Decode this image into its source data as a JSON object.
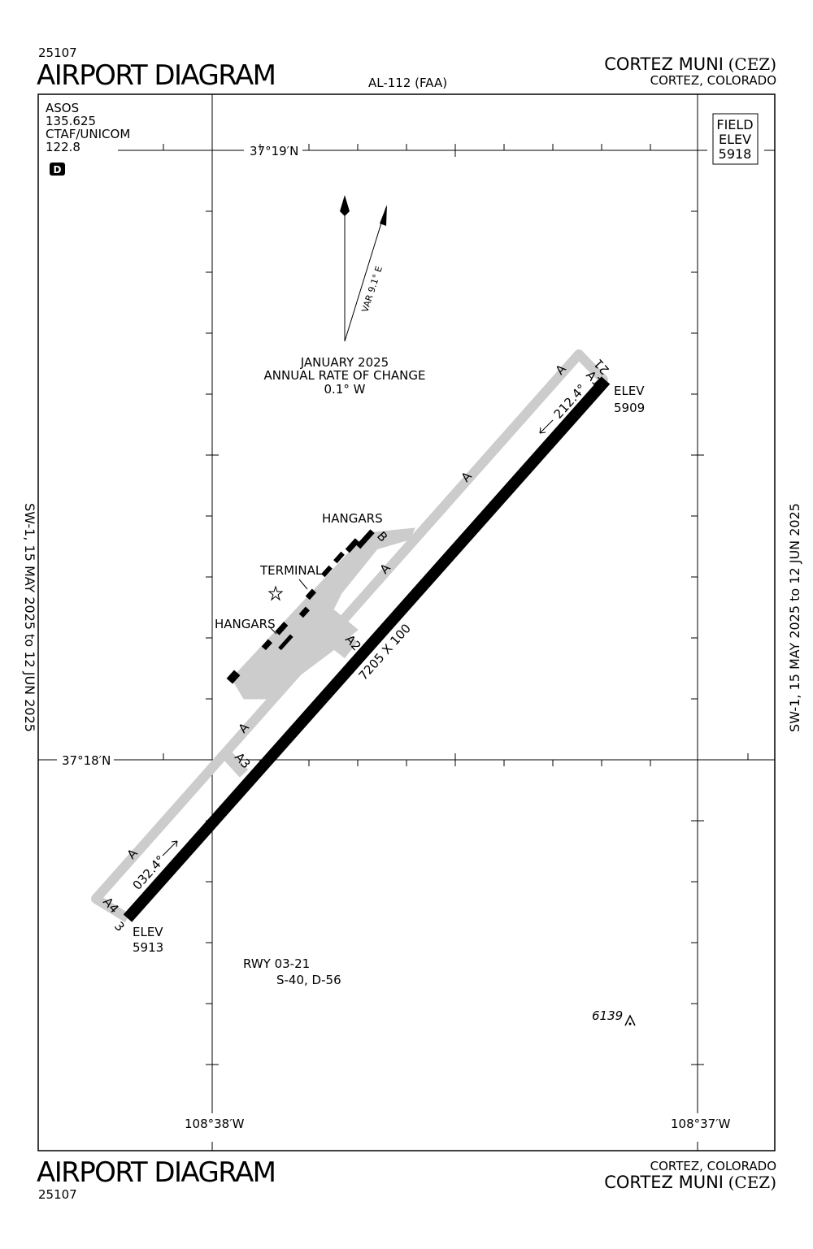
{
  "header": {
    "chart_number": "25107",
    "title": "AIRPORT DIAGRAM",
    "procedure_id": "AL-112 (FAA)",
    "airport_name": "CORTEZ MUNI",
    "airport_id": "(CEZ)",
    "location": "CORTEZ, COLORADO"
  },
  "footer": {
    "chart_number": "25107",
    "title": "AIRPORT DIAGRAM",
    "location": "CORTEZ, COLORADO",
    "airport_name": "CORTEZ MUNI",
    "airport_id": "(CEZ)"
  },
  "effective_dates": "SW-1,  15 MAY 2025  to  12 JUN 2025",
  "communications": [
    "ASOS",
    "135.625",
    "CTAF/UNICOM",
    "122.8"
  ],
  "atis_symbol": "D",
  "field_elevation": {
    "line_1": "FIELD",
    "line_2": "ELEV",
    "value": 5918
  },
  "coordinates": {
    "lat_north": "37°19′N",
    "lat_south": "37°18′N",
    "lon_west": "108°38′W",
    "lon_east": "108°37′W"
  },
  "magnetic": {
    "variation": "VAR 9.1° E",
    "date": "JANUARY 2025",
    "rate_title": "ANNUAL RATE OF CHANGE",
    "rate": "0.1° W"
  },
  "runway": {
    "dimensions": "7205 X 100",
    "end_3": {
      "number": "3",
      "heading": "032.4°",
      "elev_label": "ELEV",
      "elev": 5913
    },
    "end_21": {
      "number": "21",
      "heading": "212.4°",
      "elev_label": "ELEV",
      "elev": 5909
    },
    "name": "RWY 03-21",
    "strength": "S-40, D-56"
  },
  "taxiways": [
    "A",
    "A",
    "A",
    "A",
    "A",
    "A1",
    "A2",
    "A3",
    "A4",
    "B"
  ],
  "buildings": {
    "hangars_north": "HANGARS",
    "terminal": "TERMINAL",
    "hangars_south": "HANGARS"
  },
  "obstacle": {
    "elevation": 6139
  }
}
